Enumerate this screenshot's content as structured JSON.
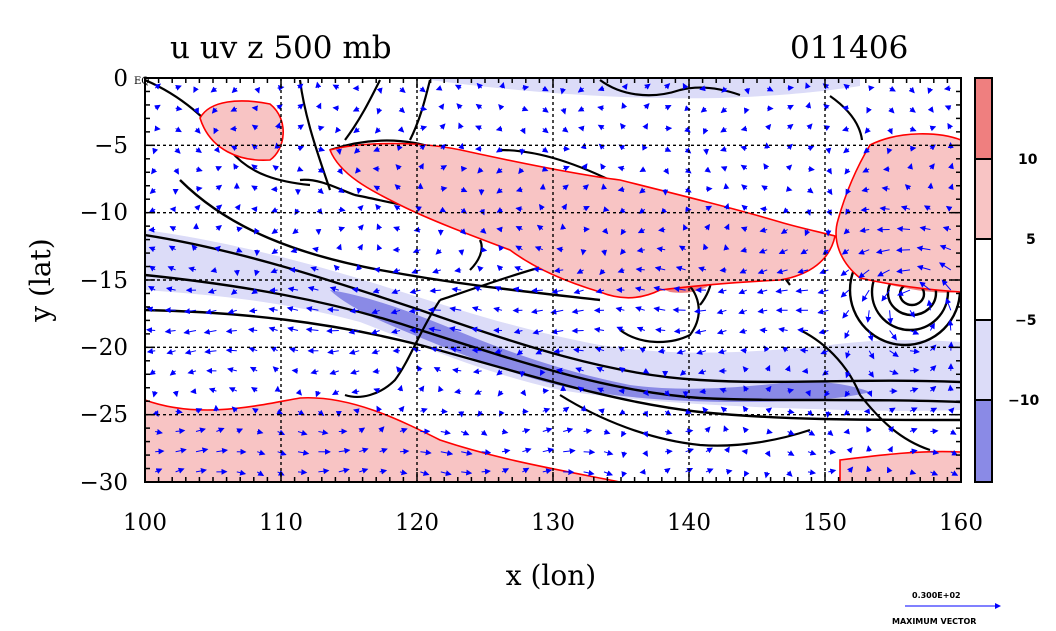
{
  "chart_data": {
    "type": "heatmap",
    "title": "u uv z 500 mb",
    "date_label": "011406",
    "xlabel": "x (lon)",
    "ylabel": "y (lat)",
    "xlim": [
      100,
      160
    ],
    "ylim": [
      -30,
      0
    ],
    "x_ticks": [
      "100",
      "110",
      "120",
      "130",
      "140",
      "150",
      "160"
    ],
    "y_ticks": [
      "0",
      "−5",
      "−10",
      "−15",
      "−20",
      "−25",
      "−30"
    ],
    "y_tick_values": [
      0,
      -5,
      -10,
      -15,
      -20,
      -25,
      -30
    ],
    "x_tick_values": [
      100,
      110,
      120,
      130,
      140,
      150,
      160
    ],
    "equator_label": "EQ",
    "grid": true,
    "colorbar": {
      "levels": [
        "10",
        "5",
        "−5",
        "−10"
      ],
      "colors": [
        "#ef7f7f",
        "#f8c4c4",
        "#ffffff",
        "#dcdcf8",
        "#8a8ae6"
      ]
    },
    "shading_colors": {
      "strong_westerly": "#ef7f7f",
      "westerly": "#f8c4c4",
      "easterly": "#dcdcf8",
      "strong_easterly": "#8a8ae6",
      "shading_outline": "#ff0000",
      "wind_vector": "#0000ff"
    },
    "vector_legend": {
      "value": "0.300E+02",
      "label": "MAXIMUM VECTOR"
    }
  }
}
